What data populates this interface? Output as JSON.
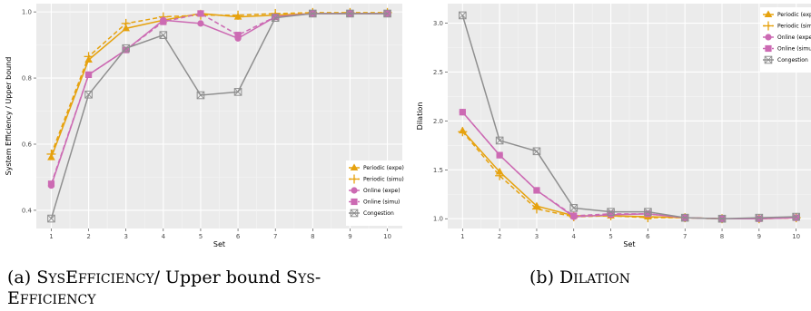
{
  "chart_data": [
    {
      "type": "line",
      "xlabel": "Set",
      "ylabel": "System Efficiency / Upper bound",
      "x": [
        1,
        2,
        3,
        4,
        5,
        6,
        7,
        8,
        9,
        10
      ],
      "xlim": [
        0.6,
        10.4
      ],
      "ylim": [
        0.345,
        1.025
      ],
      "yticks": [
        0.4,
        0.6,
        0.8,
        1.0
      ],
      "ytick_labels": [
        "0.4",
        "0.6",
        "0.8",
        "1.0"
      ],
      "grid": true,
      "legend_position": "bottom-right",
      "series": [
        {
          "name": "Periodic (expe)",
          "color": "#e6a20e",
          "dash": "solid",
          "marker": "triangle",
          "values": [
            0.56,
            0.855,
            0.95,
            0.975,
            0.995,
            0.985,
            0.99,
            0.995,
            0.995,
            0.995
          ]
        },
        {
          "name": "Periodic (simu)",
          "color": "#e6a20e",
          "dash": "dashed",
          "marker": "plus",
          "values": [
            0.57,
            0.865,
            0.965,
            0.985,
            0.99,
            0.99,
            0.995,
            0.998,
            0.998,
            0.998
          ]
        },
        {
          "name": "Online (expe)",
          "color": "#cc6ab3",
          "dash": "solid",
          "marker": "circle",
          "values": [
            0.475,
            0.81,
            0.885,
            0.975,
            0.965,
            0.92,
            0.985,
            0.995,
            0.995,
            0.995
          ]
        },
        {
          "name": "Online (simu)",
          "color": "#cc6ab3",
          "dash": "dashed",
          "marker": "square",
          "values": [
            0.48,
            0.81,
            0.885,
            0.97,
            0.995,
            0.93,
            0.985,
            0.995,
            0.995,
            0.995
          ]
        },
        {
          "name": "Congestion",
          "color": "#8f8f8f",
          "dash": "solid",
          "marker": "boxx",
          "values": [
            0.375,
            0.75,
            0.89,
            0.93,
            0.748,
            0.758,
            0.982,
            0.995,
            0.995,
            0.995
          ]
        }
      ],
      "caption": "(a) SysEfficiency/ Upper bound Sys-Efficiency"
    },
    {
      "type": "line",
      "xlabel": "Set",
      "ylabel": "Dilation",
      "x": [
        1,
        2,
        3,
        4,
        5,
        6,
        7,
        8,
        9,
        10
      ],
      "xlim": [
        0.6,
        10.4
      ],
      "ylim": [
        0.9,
        3.2
      ],
      "yticks": [
        1.0,
        1.5,
        2.0,
        2.5,
        3.0
      ],
      "ytick_labels": [
        "1.0",
        "1.5",
        "2.0",
        "2.5",
        "3.0"
      ],
      "grid": true,
      "legend_position": "top-right",
      "series": [
        {
          "name": "Periodic (expe)",
          "color": "#e6a20e",
          "dash": "solid",
          "marker": "triangle",
          "values": [
            1.9,
            1.48,
            1.13,
            1.03,
            1.03,
            1.02,
            1.01,
            1.0,
            1.0,
            1.01
          ]
        },
        {
          "name": "Periodic (simu)",
          "color": "#e6a20e",
          "dash": "dashed",
          "marker": "plus",
          "values": [
            1.89,
            1.44,
            1.1,
            1.02,
            1.03,
            1.01,
            1.01,
            1.0,
            1.0,
            1.01
          ]
        },
        {
          "name": "Online (expe)",
          "color": "#cc6ab3",
          "dash": "solid",
          "marker": "circle",
          "values": [
            2.09,
            1.65,
            1.29,
            1.02,
            1.04,
            1.05,
            1.01,
            1.0,
            1.0,
            1.01
          ]
        },
        {
          "name": "Online (simu)",
          "color": "#cc6ab3",
          "dash": "dashed",
          "marker": "square",
          "values": [
            2.09,
            1.65,
            1.29,
            1.03,
            1.05,
            1.05,
            1.01,
            1.0,
            1.0,
            1.01
          ]
        },
        {
          "name": "Congestion",
          "color": "#8f8f8f",
          "dash": "solid",
          "marker": "boxx",
          "values": [
            3.08,
            1.8,
            1.69,
            1.11,
            1.07,
            1.07,
            1.01,
            1.0,
            1.01,
            1.02
          ]
        }
      ],
      "caption": "(b) Dilation"
    }
  ]
}
